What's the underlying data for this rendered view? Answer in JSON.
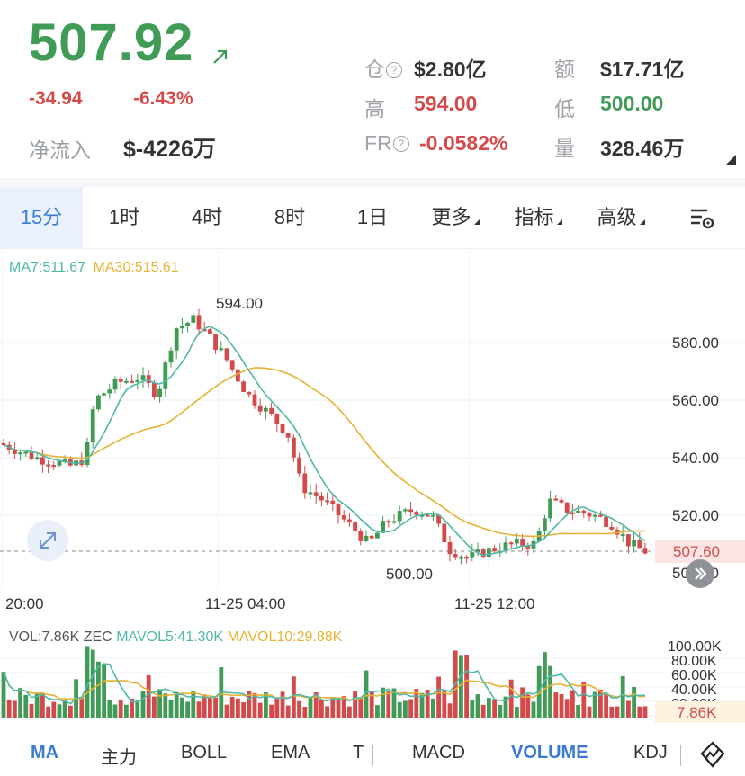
{
  "header": {
    "price": "507.92",
    "change": "-34.94",
    "change_pct": "-6.43%",
    "net_inflow_label": "净流入",
    "net_inflow_value": "$-4226万",
    "stats": {
      "position_label": "仓",
      "position_value": "$2.80亿",
      "amount_label": "额",
      "amount_value": "$17.71亿",
      "high_label": "高",
      "high_value": "594.00",
      "low_label": "低",
      "low_value": "500.00",
      "fr_label": "FR",
      "fr_value": "-0.0582%",
      "volume_label": "量",
      "volume_value": "328.46万"
    },
    "help_glyph": "?"
  },
  "timeframes": [
    {
      "label": "15分",
      "active": true
    },
    {
      "label": "1时",
      "active": false
    },
    {
      "label": "4时",
      "active": false
    },
    {
      "label": "8时",
      "active": false
    },
    {
      "label": "1日",
      "active": false
    },
    {
      "label": "更多",
      "active": false
    },
    {
      "label": "指标",
      "active": false
    },
    {
      "label": "高级",
      "active": false
    }
  ],
  "indicators": {
    "ma7": "MA7:511.67",
    "ma30": "MA30:515.61",
    "vol": "VOL:7.86K",
    "zec": "ZEC",
    "mavol5": "MAVOL5:41.30K",
    "mavol10": "MAVOL10:29.88K"
  },
  "price_axis": {
    "ticks": [
      "580.00",
      "560.00",
      "540.00",
      "520.00",
      "500.00"
    ],
    "current": "507.60",
    "high_mark": "594.00",
    "low_mark": "500.00"
  },
  "time_axis": [
    "20:00",
    "11-25 04:00",
    "11-25 12:00"
  ],
  "volume_axis": {
    "ticks": [
      "100.00K",
      "80.00K",
      "60.00K",
      "40.00K",
      "20.00K"
    ],
    "current": "7.86K"
  },
  "bottom_tabs": [
    {
      "label": "MA",
      "active": true
    },
    {
      "label": "主力",
      "active": false
    },
    {
      "label": "BOLL",
      "active": false
    },
    {
      "label": "EMA",
      "active": false
    },
    {
      "label": "T",
      "active": false
    },
    {
      "label": "MACD",
      "active": false
    },
    {
      "label": "VOLUME",
      "active": true
    },
    {
      "label": "KDJ",
      "active": false
    }
  ],
  "colors": {
    "up": "#3f9b55",
    "down": "#d44a4a",
    "accent": "#3a7ad5",
    "ma7": "#4fb8a8",
    "ma30": "#e6b233"
  },
  "icons": [
    "arrow-up-right-icon",
    "help-icon",
    "settings-icon",
    "expand-icon",
    "chart-draw-icon"
  ]
}
